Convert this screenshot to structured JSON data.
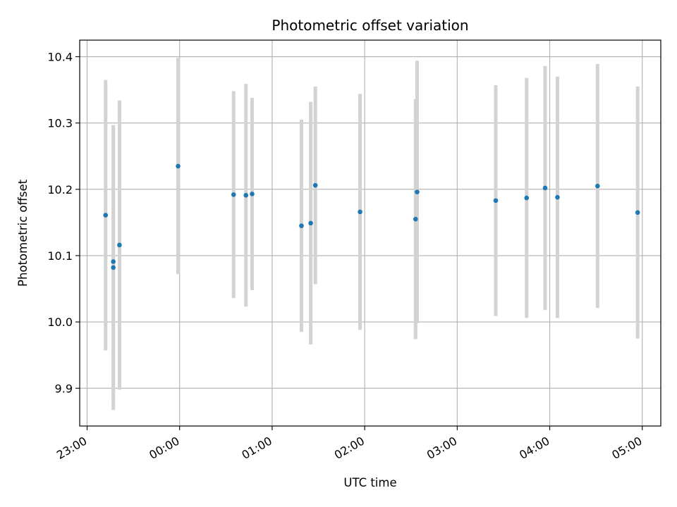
{
  "chart_data": {
    "type": "scatter",
    "title": "Photometric offset variation",
    "xlabel": "UTC time",
    "ylabel": "Photometric offset",
    "x_ticks": [
      "23:00",
      "00:00",
      "01:00",
      "02:00",
      "03:00",
      "04:00",
      "05:00"
    ],
    "y_ticks": [
      "9.9",
      "10.0",
      "10.1",
      "10.2",
      "10.3",
      "10.4"
    ],
    "xlim_hours": [
      -0.08,
      6.2
    ],
    "ylim": [
      9.843,
      10.425
    ],
    "grid": true,
    "colors": {
      "points": "#1f77b4",
      "errorbars": "#d3d3d3",
      "grid": "#b0b0b0"
    },
    "points": [
      {
        "time": "23:12",
        "y": 10.161,
        "err": 0.204
      },
      {
        "time": "23:17",
        "y": 10.091,
        "err": 0.205
      },
      {
        "time": "23:17",
        "y": 10.082,
        "err": 0.215
      },
      {
        "time": "23:21",
        "y": 10.116,
        "err": 0.218
      },
      {
        "time": "23:59",
        "y": 10.235,
        "err": 0.163
      },
      {
        "time": "00:35",
        "y": 10.192,
        "err": 0.156
      },
      {
        "time": "00:43",
        "y": 10.191,
        "err": 0.168
      },
      {
        "time": "00:47",
        "y": 10.193,
        "err": 0.145
      },
      {
        "time": "01:19",
        "y": 10.145,
        "err": 0.16
      },
      {
        "time": "01:25",
        "y": 10.149,
        "err": 0.183
      },
      {
        "time": "01:28",
        "y": 10.206,
        "err": 0.149
      },
      {
        "time": "01:57",
        "y": 10.166,
        "err": 0.178
      },
      {
        "time": "02:33",
        "y": 10.155,
        "err": 0.181
      },
      {
        "time": "02:34",
        "y": 10.196,
        "err": 0.198
      },
      {
        "time": "03:25",
        "y": 10.183,
        "err": 0.174
      },
      {
        "time": "03:45",
        "y": 10.187,
        "err": 0.181
      },
      {
        "time": "03:57",
        "y": 10.202,
        "err": 0.184
      },
      {
        "time": "04:05",
        "y": 10.188,
        "err": 0.182
      },
      {
        "time": "04:31",
        "y": 10.205,
        "err": 0.184
      },
      {
        "time": "04:57",
        "y": 10.165,
        "err": 0.19
      }
    ]
  }
}
